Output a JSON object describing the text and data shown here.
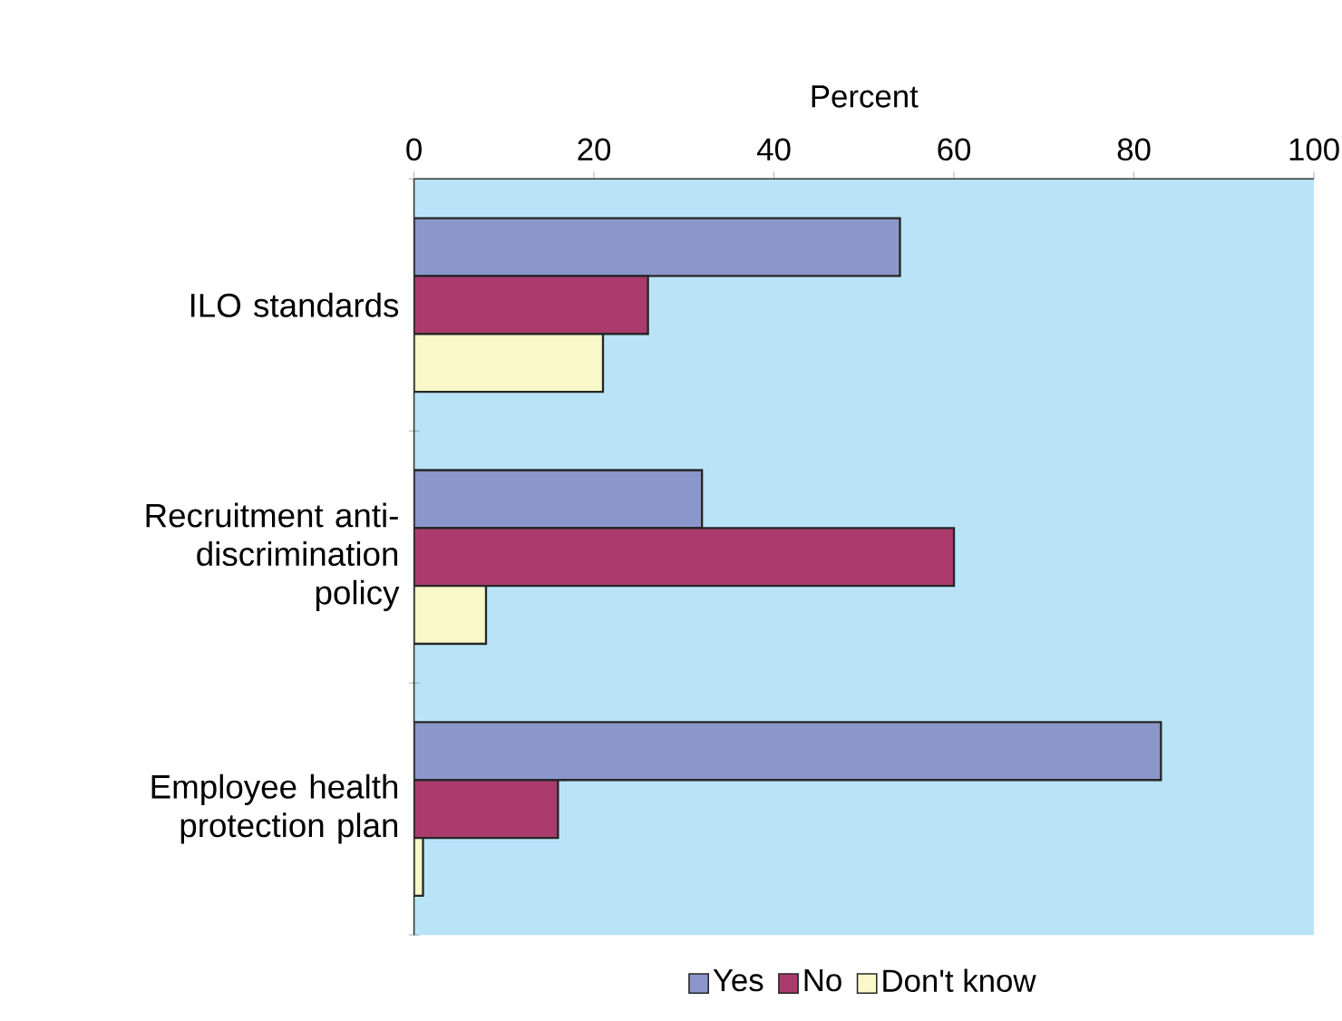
{
  "chart_data": {
    "type": "bar",
    "orientation": "horizontal",
    "xlabel": "Percent",
    "categories": [
      "ILO standards",
      "Recruitment anti-discrimination policy",
      "Employee health protection plan"
    ],
    "series": [
      {
        "name": "Yes",
        "color": "#8b96cb",
        "values": [
          54,
          32,
          83
        ]
      },
      {
        "name": "No",
        "color": "#ab3b6c",
        "values": [
          26,
          60,
          16
        ]
      },
      {
        "name": "Don't know",
        "color": "#f8f8c8",
        "values": [
          21,
          8,
          1
        ]
      }
    ],
    "xlim": [
      0,
      100
    ],
    "xticks": [
      0,
      20,
      40,
      60,
      80,
      100
    ],
    "grid": false,
    "legend": "bottom"
  }
}
